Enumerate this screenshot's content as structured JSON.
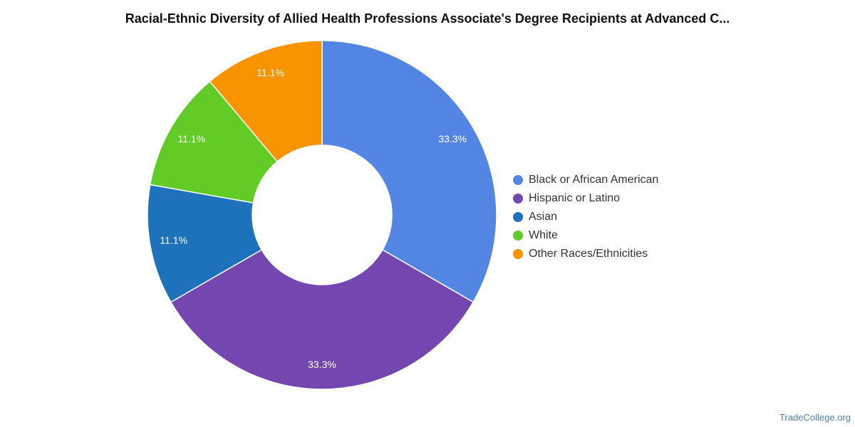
{
  "chart_data": {
    "type": "pie",
    "variant": "donut",
    "title": "Racial-Ethnic Diversity of Allied Health Professions Associate's Degree Recipients at Advanced C...",
    "legend_position": "right",
    "slices": [
      {
        "label": "Black or African American",
        "value": 33.3,
        "display": "33.3%",
        "color": "#5386e4"
      },
      {
        "label": "Hispanic or Latino",
        "value": 33.3,
        "display": "33.3%",
        "color": "#7346b0"
      },
      {
        "label": "Asian",
        "value": 11.1,
        "display": "11.1%",
        "color": "#1e71bb"
      },
      {
        "label": "White",
        "value": 11.1,
        "display": "11.1%",
        "color": "#62cb25"
      },
      {
        "label": "Other Races/Ethnicities",
        "value": 11.1,
        "display": "11.1%",
        "color": "#f79400"
      }
    ]
  },
  "footer": {
    "source": "TradeCollege.org"
  }
}
